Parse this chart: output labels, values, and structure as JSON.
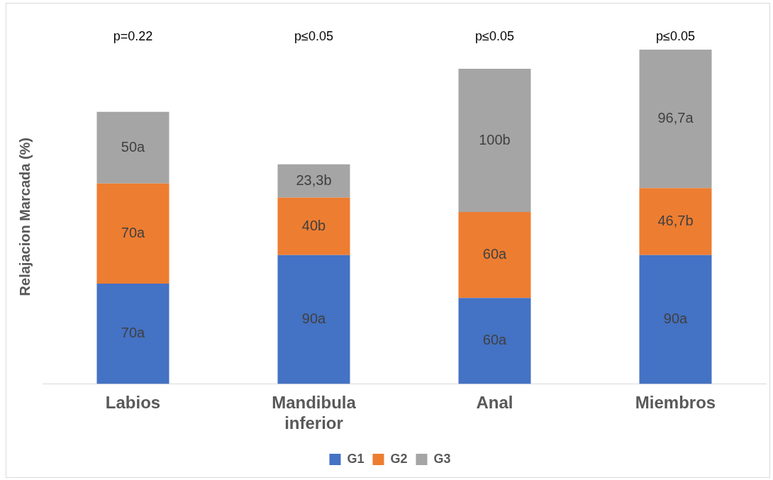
{
  "chart_data": {
    "type": "bar",
    "stacked": true,
    "ylabel": "Relajacion Marcada (%)",
    "categories": [
      "Labios",
      "Mandibula inferior",
      "Anal",
      "Miembros"
    ],
    "series": [
      {
        "name": "G1",
        "color": "#4472c4",
        "values": [
          70,
          90,
          60,
          90
        ],
        "value_labels": [
          "70a",
          "90a",
          "60a",
          "90a"
        ]
      },
      {
        "name": "G2",
        "color": "#ed7d31",
        "values": [
          70,
          40,
          60,
          46.7
        ],
        "value_labels": [
          "70a",
          "40b",
          "60a",
          "46,7b"
        ]
      },
      {
        "name": "G3",
        "color": "#a5a5a5",
        "values": [
          50,
          23.3,
          100,
          96.7
        ],
        "value_labels": [
          "50a",
          "23,3b",
          "100b",
          "96,7a"
        ]
      }
    ],
    "annotations": [
      "p=0.22",
      "p≤0.05",
      "p≤0.05",
      "p≤0.05"
    ],
    "legend": "bottom",
    "grid": false
  }
}
